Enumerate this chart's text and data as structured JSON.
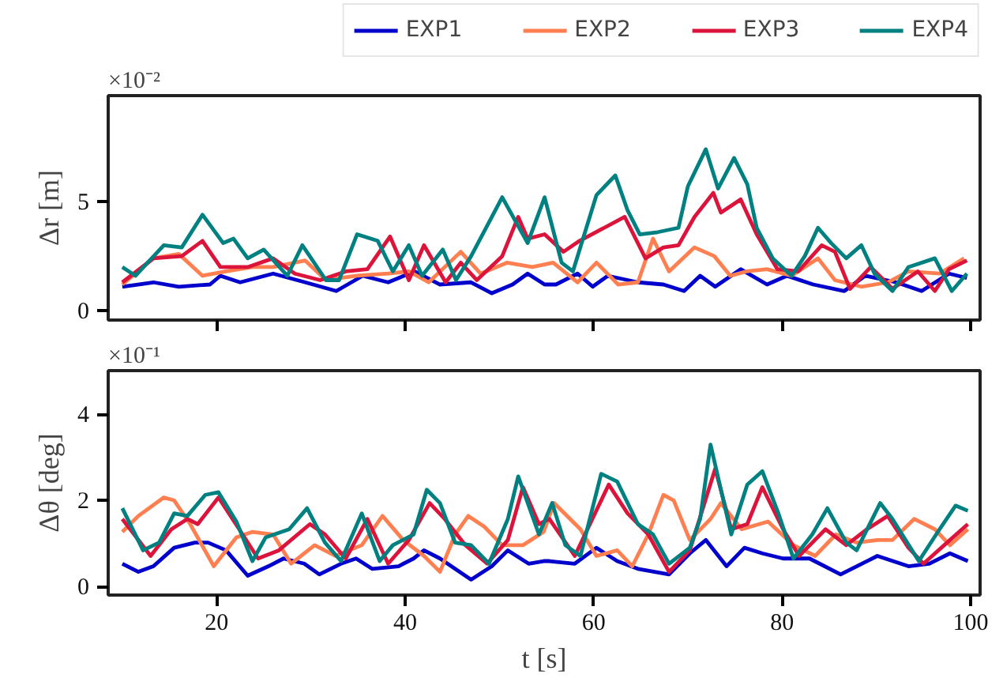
{
  "chart_data": [
    {
      "type": "line",
      "ylabel": "Δr [m]",
      "annotations": [
        "×10⁻²"
      ],
      "xlim": [
        8.5,
        101
      ],
      "ylim": [
        -0.43,
        9.86
      ],
      "xticks": [
        20,
        40,
        60,
        80,
        100
      ],
      "yticks": [
        0,
        5
      ],
      "tick_labels": "y",
      "legend": "top right",
      "series": [
        {
          "name": "EXP1",
          "color": "#0000cc",
          "x": [
            10,
            13.3,
            16,
            19.3,
            20.4,
            22.5,
            26,
            29.4,
            32.7,
            35.5,
            38.2,
            41,
            43.7,
            47,
            49.2,
            51.4,
            53,
            54.8,
            56,
            58.3,
            59.9,
            61.5,
            64.7,
            67.4,
            69.6,
            71.3,
            72.9,
            75.6,
            78.4,
            80.5,
            83.3,
            86.6,
            88.8,
            92.1,
            94.8,
            97.7,
            99.6
          ],
          "values": [
            1.1,
            1.3,
            1.1,
            1.2,
            1.6,
            1.3,
            1.7,
            1.3,
            0.9,
            1.6,
            1.3,
            1.8,
            1.2,
            1.3,
            0.8,
            1.2,
            1.7,
            1.2,
            1.2,
            1.7,
            1.1,
            1.6,
            1.3,
            1.2,
            0.9,
            1.6,
            1.1,
            1.9,
            1.2,
            1.6,
            1.2,
            0.9,
            1.6,
            1.3,
            0.9,
            1.7,
            1.5
          ]
        },
        {
          "name": "EXP2",
          "color": "#ff7f50",
          "x": [
            10,
            13.3,
            16,
            18.5,
            21,
            23.8,
            26,
            29.4,
            31.6,
            34.9,
            38.2,
            40.4,
            42.5,
            45.9,
            48,
            50.8,
            53.5,
            55.7,
            58.3,
            60.3,
            62.6,
            64.7,
            66.3,
            68,
            70.7,
            72.8,
            74.5,
            76.2,
            78.4,
            81,
            83.8,
            85.6,
            88.4,
            91.2,
            93.4,
            96.7,
            99.3
          ],
          "values": [
            1.2,
            2.4,
            2.6,
            1.6,
            1.8,
            2.0,
            2.0,
            2.3,
            1.4,
            1.6,
            1.7,
            1.8,
            1.3,
            2.7,
            1.7,
            2.2,
            2.0,
            2.2,
            1.3,
            2.2,
            1.2,
            1.3,
            3.3,
            1.8,
            2.9,
            2.5,
            1.6,
            1.8,
            1.9,
            1.6,
            2.4,
            1.4,
            1.1,
            1.3,
            1.8,
            1.7,
            2.4
          ]
        },
        {
          "name": "EXP3",
          "color": "#dc143c",
          "x": [
            10,
            13.3,
            16.3,
            18.5,
            20.4,
            23.3,
            26,
            28.3,
            31,
            33.7,
            36,
            38.4,
            40.4,
            42,
            44.3,
            45.9,
            47.6,
            50.3,
            52,
            53,
            54.8,
            56.8,
            58.5,
            63.3,
            65.5,
            67.4,
            69,
            70.7,
            72.7,
            73.5,
            75.6,
            77.3,
            79.5,
            81.7,
            84.2,
            85.6,
            87.2,
            89.4,
            91.7,
            94.4,
            96.2,
            97.7,
            99.6
          ],
          "values": [
            1.3,
            2.4,
            2.5,
            3.2,
            2.0,
            2.0,
            2.4,
            1.7,
            1.4,
            1.8,
            1.9,
            3.4,
            1.4,
            3.0,
            1.3,
            2.2,
            1.4,
            2.5,
            4.3,
            3.3,
            3.5,
            2.7,
            3.2,
            4.3,
            2.4,
            2.9,
            3.0,
            4.3,
            5.4,
            4.5,
            5.1,
            3.5,
            1.9,
            1.8,
            3.0,
            2.7,
            1.0,
            2.0,
            1.0,
            1.8,
            0.9,
            1.9,
            2.3
          ]
        },
        {
          "name": "EXP4",
          "color": "#008080",
          "x": [
            10,
            11.4,
            14.4,
            16.3,
            18.5,
            20.7,
            21.8,
            23.3,
            25,
            27.5,
            29.1,
            31.6,
            33,
            34.9,
            37.1,
            38.7,
            40.4,
            41.8,
            44,
            45.4,
            47,
            50.3,
            53,
            54.8,
            56.6,
            57.8,
            60.3,
            62.3,
            63.6,
            64.9,
            66.8,
            69,
            70,
            71.9,
            73.2,
            74.9,
            76.3,
            77.3,
            79,
            81,
            82.4,
            83.8,
            85.2,
            86.8,
            88.4,
            89.8,
            91.7,
            93.4,
            96.2,
            98,
            99.6
          ],
          "values": [
            2.0,
            1.6,
            3.0,
            2.9,
            4.4,
            3.1,
            3.3,
            2.4,
            2.8,
            1.6,
            3.0,
            1.4,
            1.4,
            3.5,
            3.2,
            1.8,
            3.0,
            1.6,
            2.8,
            1.4,
            2.5,
            5.2,
            3.1,
            5.2,
            2.2,
            1.8,
            5.3,
            6.2,
            4.6,
            3.5,
            3.6,
            3.8,
            5.7,
            7.4,
            5.6,
            7.0,
            5.8,
            3.8,
            2.4,
            1.6,
            2.5,
            3.8,
            3.1,
            2.4,
            3.0,
            1.7,
            0.9,
            2.0,
            2.4,
            0.9,
            1.7
          ]
        }
      ]
    },
    {
      "type": "line",
      "xlabel": "t [s]",
      "ylabel": "Δθ [deg]",
      "annotations": [
        "×10⁻¹"
      ],
      "xlim": [
        8.5,
        101
      ],
      "ylim": [
        -0.2,
        5.02
      ],
      "xticks": [
        20,
        40,
        60,
        80,
        100
      ],
      "yticks": [
        0,
        2,
        4
      ],
      "series": [
        {
          "color": "#0000cc",
          "x": [
            10,
            11.7,
            13.3,
            15.5,
            17.7,
            19.1,
            21,
            23.3,
            25.5,
            27.1,
            29.3,
            30.9,
            33.2,
            34.8,
            36.5,
            39.3,
            40.9,
            42,
            43.7,
            45.3,
            47,
            49.2,
            50.9,
            53.1,
            54.7,
            55.3,
            58,
            60.3,
            62.5,
            64.7,
            68,
            70.2,
            71.9,
            74.1,
            76,
            77.9,
            80.1,
            82.9,
            86.2,
            89,
            90.1,
            93.4,
            95.6,
            97.8,
            99.7
          ],
          "values": [
            0.53,
            0.34,
            0.47,
            0.9,
            1.02,
            1.02,
            0.84,
            0.25,
            0.47,
            0.65,
            0.53,
            0.28,
            0.53,
            0.65,
            0.41,
            0.47,
            0.65,
            0.84,
            0.65,
            0.41,
            0.16,
            0.47,
            0.84,
            0.53,
            0.59,
            0.59,
            0.53,
            0.9,
            0.59,
            0.41,
            0.28,
            0.77,
            1.08,
            0.47,
            0.9,
            0.77,
            0.65,
            0.65,
            0.28,
            0.59,
            0.71,
            0.47,
            0.53,
            0.77,
            0.59
          ]
        },
        {
          "color": "#ff7f50",
          "x": [
            10,
            11.7,
            14.4,
            15.5,
            17.2,
            19.7,
            22.1,
            23.8,
            26,
            27.9,
            30.4,
            32.6,
            35.4,
            37.6,
            39.8,
            42,
            43.7,
            45.3,
            46.7,
            48.4,
            50.3,
            52.5,
            54.7,
            55.8,
            58.6,
            60.3,
            62.5,
            64.1,
            65.8,
            67.4,
            68.5,
            70.2,
            72.4,
            73.5,
            75.7,
            78.5,
            81.2,
            83.5,
            85.7,
            87.9,
            90.1,
            91.7,
            94,
            96.2,
            97.8,
            99.7
          ],
          "values": [
            1.27,
            1.64,
            2.07,
            2.0,
            1.45,
            0.47,
            1.14,
            1.27,
            1.21,
            0.53,
            0.96,
            0.71,
            0.96,
            1.64,
            1.08,
            0.71,
            0.34,
            1.21,
            1.64,
            1.39,
            0.96,
            0.96,
            1.27,
            1.94,
            1.33,
            0.71,
            0.84,
            0.47,
            1.21,
            2.13,
            2.0,
            1.08,
            1.57,
            1.94,
            1.33,
            1.51,
            0.96,
            0.71,
            1.21,
            1.02,
            1.08,
            1.08,
            1.57,
            1.33,
            0.96,
            1.33
          ]
        },
        {
          "color": "#dc143c",
          "x": [
            10,
            13,
            15.2,
            16.9,
            18,
            20.2,
            22.4,
            24.4,
            26.6,
            29.9,
            31.5,
            33.7,
            36,
            38.2,
            40.4,
            42.6,
            44.2,
            46.4,
            48.7,
            50.9,
            52.5,
            54.2,
            55.3,
            58,
            61.6,
            63.6,
            65.8,
            68,
            70.2,
            72.9,
            74.6,
            76.3,
            77.9,
            80.1,
            81.8,
            84.6,
            86.8,
            89,
            91.2,
            93.4,
            95,
            97.8,
            99.7
          ],
          "values": [
            1.57,
            0.71,
            1.33,
            1.57,
            1.45,
            2.07,
            1.33,
            0.65,
            0.84,
            1.45,
            1.21,
            0.65,
            1.57,
            0.53,
            1.08,
            1.94,
            1.57,
            0.96,
            0.53,
            1.08,
            2.31,
            1.45,
            1.57,
            0.71,
            2.37,
            1.7,
            1.21,
            0.34,
            0.84,
            2.74,
            1.33,
            1.45,
            2.31,
            1.33,
            0.71,
            1.33,
            0.96,
            1.33,
            1.64,
            0.9,
            0.53,
            1.08,
            1.45
          ]
        },
        {
          "color": "#008080",
          "x": [
            10,
            12.2,
            13.9,
            15.5,
            16.9,
            18.8,
            20.2,
            22.1,
            23.8,
            25.2,
            27.7,
            29.6,
            31.5,
            33.2,
            35.4,
            37.3,
            38.7,
            40.9,
            42.3,
            43.7,
            45.3,
            47,
            48.9,
            50.9,
            52,
            54.2,
            55.6,
            57,
            58.6,
            60.8,
            62.5,
            64.7,
            66.3,
            68,
            70.2,
            71.3,
            72.4,
            74.6,
            76.3,
            77.9,
            79.6,
            81.2,
            83.2,
            84.8,
            86.8,
            87.9,
            90.4,
            91.7,
            94.5,
            96.7,
            98.4,
            99.7
          ],
          "values": [
            1.82,
            0.84,
            1.02,
            1.7,
            1.64,
            2.13,
            2.19,
            1.51,
            0.59,
            1.14,
            1.33,
            1.82,
            1.02,
            0.59,
            1.7,
            0.59,
            0.96,
            1.21,
            2.25,
            1.94,
            1.02,
            0.96,
            0.53,
            1.57,
            2.56,
            1.21,
            1.94,
            0.96,
            0.71,
            2.62,
            2.44,
            1.45,
            1.21,
            0.53,
            0.9,
            1.57,
            3.3,
            1.21,
            2.37,
            2.68,
            1.7,
            0.65,
            1.21,
            1.82,
            1.02,
            0.84,
            1.94,
            1.57,
            0.59,
            1.33,
            1.88,
            1.76
          ]
        }
      ]
    }
  ]
}
